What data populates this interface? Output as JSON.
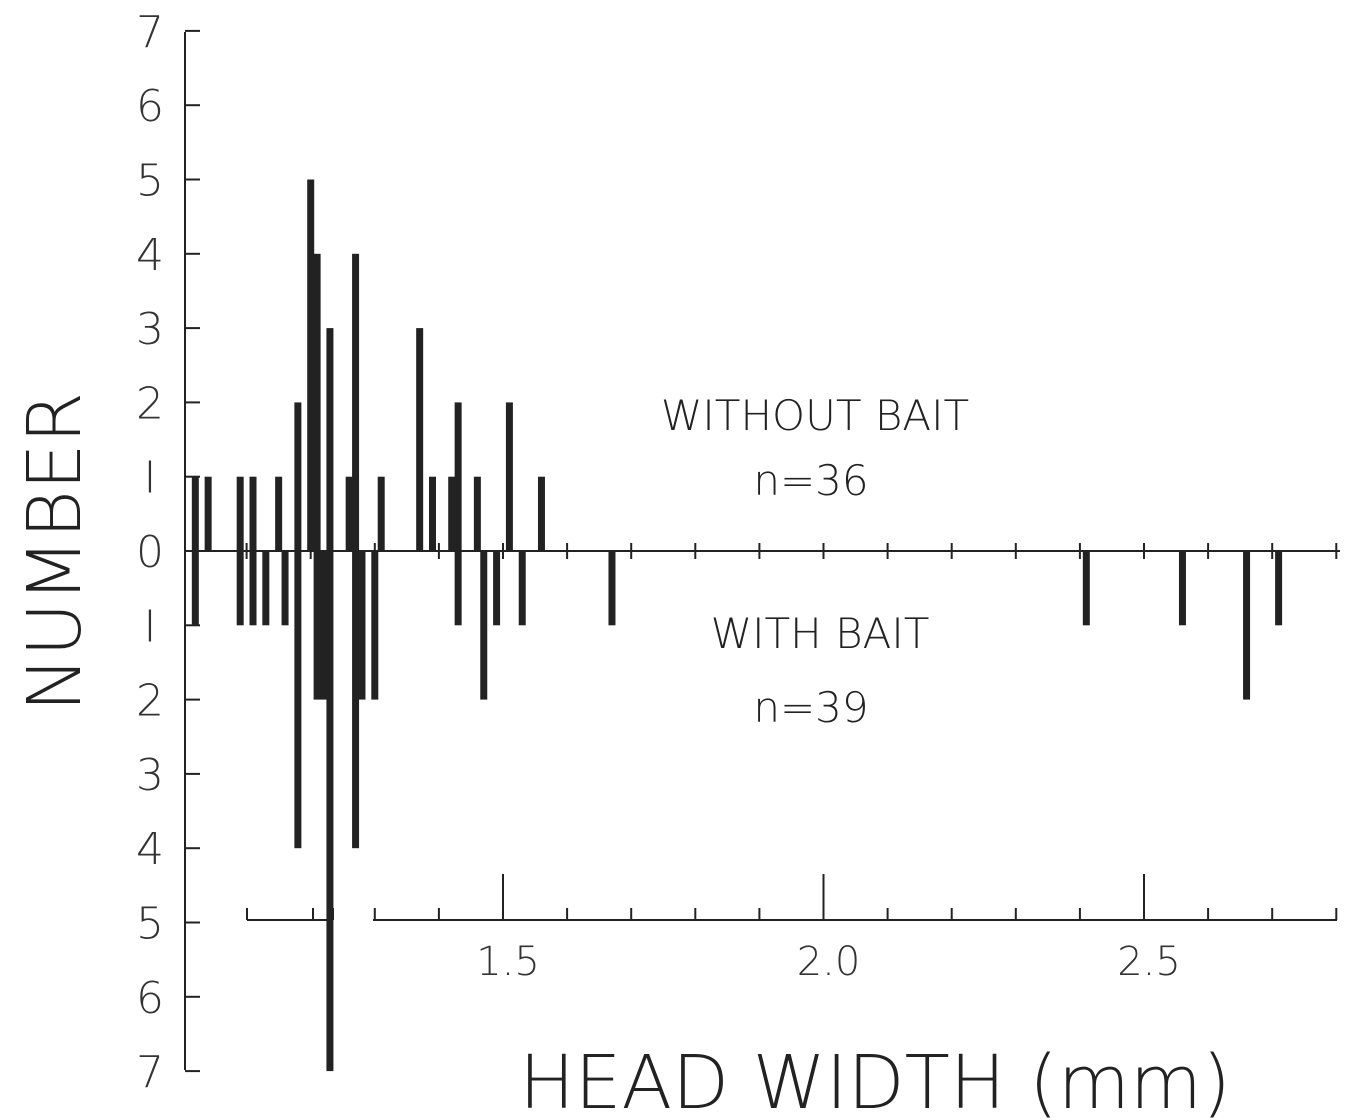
{
  "chart_data": {
    "type": "bar",
    "layout": "back-to-back histogram (above and below a shared zero line)",
    "xlabel": "HEAD WIDTH (mm)",
    "ylabel": "NUMBER",
    "x_ticks": [
      "1.5",
      "2.0",
      "2.5"
    ],
    "x_range_mm": [
      0.95,
      2.8
    ],
    "y_ticks_upper": [
      "7",
      "6",
      "5",
      "4",
      "3",
      "2",
      "I",
      "0"
    ],
    "y_ticks_lower": [
      "I",
      "2",
      "3",
      "4",
      "5",
      "6",
      "7"
    ],
    "y_range": [
      -7,
      7
    ],
    "grid": false,
    "series": [
      {
        "name": "WITHOUT BAIT",
        "n_label": "n=36",
        "direction": "up",
        "points": [
          {
            "x": 1.02,
            "y": 1
          },
          {
            "x": 1.04,
            "y": 1
          },
          {
            "x": 1.09,
            "y": 1
          },
          {
            "x": 1.11,
            "y": 1
          },
          {
            "x": 1.15,
            "y": 1
          },
          {
            "x": 1.18,
            "y": 2
          },
          {
            "x": 1.2,
            "y": 5
          },
          {
            "x": 1.21,
            "y": 4
          },
          {
            "x": 1.23,
            "y": 3
          },
          {
            "x": 1.26,
            "y": 1
          },
          {
            "x": 1.27,
            "y": 4
          },
          {
            "x": 1.31,
            "y": 1
          },
          {
            "x": 1.37,
            "y": 3
          },
          {
            "x": 1.39,
            "y": 1
          },
          {
            "x": 1.42,
            "y": 1
          },
          {
            "x": 1.43,
            "y": 2
          },
          {
            "x": 1.46,
            "y": 1
          },
          {
            "x": 1.51,
            "y": 2
          },
          {
            "x": 1.56,
            "y": 1
          }
        ]
      },
      {
        "name": "WITH BAIT",
        "n_label": "n=39",
        "direction": "down",
        "points": [
          {
            "x": 1.02,
            "y": 1
          },
          {
            "x": 1.09,
            "y": 1
          },
          {
            "x": 1.11,
            "y": 1
          },
          {
            "x": 1.13,
            "y": 1
          },
          {
            "x": 1.16,
            "y": 1
          },
          {
            "x": 1.18,
            "y": 4
          },
          {
            "x": 1.21,
            "y": 2
          },
          {
            "x": 1.22,
            "y": 2
          },
          {
            "x": 1.23,
            "y": 7
          },
          {
            "x": 1.27,
            "y": 4
          },
          {
            "x": 1.28,
            "y": 2
          },
          {
            "x": 1.3,
            "y": 2
          },
          {
            "x": 1.43,
            "y": 1
          },
          {
            "x": 1.47,
            "y": 2
          },
          {
            "x": 1.49,
            "y": 1
          },
          {
            "x": 1.53,
            "y": 1
          },
          {
            "x": 1.67,
            "y": 1
          },
          {
            "x": 2.41,
            "y": 1
          },
          {
            "x": 2.56,
            "y": 1
          },
          {
            "x": 2.66,
            "y": 2
          },
          {
            "x": 2.71,
            "y": 1
          }
        ]
      }
    ]
  }
}
